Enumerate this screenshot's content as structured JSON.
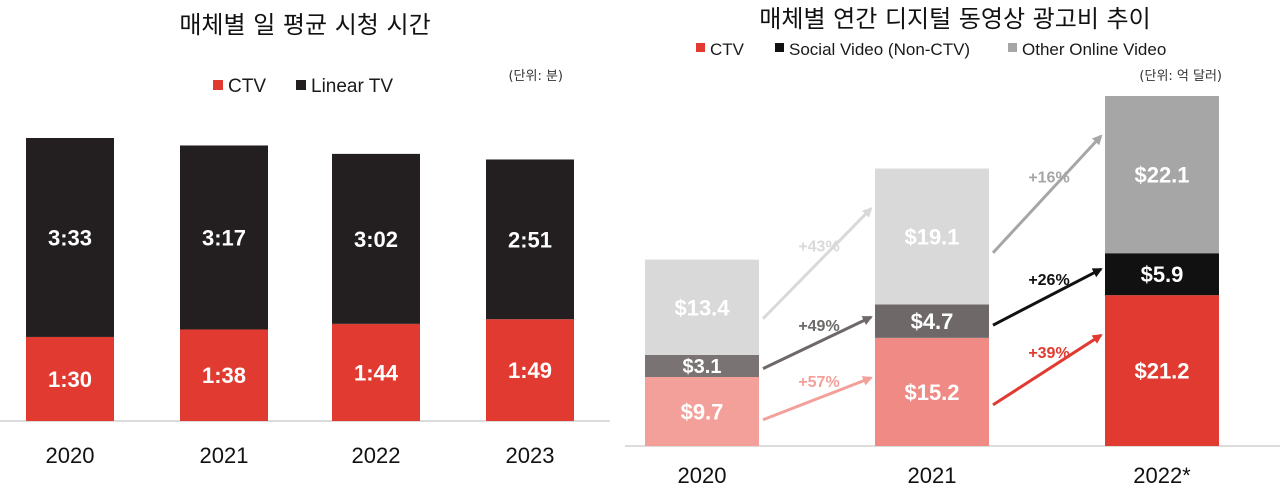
{
  "chart_data": [
    {
      "type": "bar",
      "stacked": true,
      "title": "매체별 일 평균 시청 시간",
      "unit_label": "(단위: 분)",
      "categories": [
        "2020",
        "2021",
        "2022",
        "2023"
      ],
      "series": [
        {
          "name": "CTV",
          "color": "#e03a31",
          "values": [
            90,
            98,
            104,
            109
          ],
          "labels": [
            "1:30",
            "1:38",
            "1:44",
            "1:49"
          ]
        },
        {
          "name": "Linear TV",
          "color": "#231f20",
          "values": [
            213,
            197,
            182,
            171
          ],
          "labels": [
            "3:33",
            "3:17",
            "3:02",
            "2:51"
          ]
        }
      ],
      "ylim": [
        0,
        303
      ],
      "legend": "top-center",
      "grid": false
    },
    {
      "type": "bar",
      "stacked": true,
      "title": "매체별 연간 디지털 동영상 광고비 추이",
      "unit_label": "(단위: 억 달러)",
      "categories": [
        "2020",
        "2021",
        "2022*"
      ],
      "series": [
        {
          "name": "CTV",
          "color": "#e03a31",
          "year_colors": [
            "#f4a09a",
            "#f08a84",
            "#e03a31"
          ],
          "values": [
            9.7,
            15.2,
            21.2
          ],
          "labels": [
            "$9.7",
            "$15.2",
            "$21.2"
          ]
        },
        {
          "name": "Social Video (Non-CTV)",
          "color": "#1a1a1a",
          "year_colors": [
            "#7a7373",
            "#6e6868",
            "#111111"
          ],
          "values": [
            3.1,
            4.7,
            5.9
          ],
          "labels": [
            "$3.1",
            "$4.7",
            "$5.9"
          ]
        },
        {
          "name": "Other Online Video",
          "color": "#a6a6a6",
          "year_colors": [
            "#d9d9d9",
            "#d9d9d9",
            "#a6a6a6"
          ],
          "values": [
            13.4,
            19.1,
            22.1
          ],
          "labels": [
            "$13.4",
            "$19.1",
            "$22.1"
          ]
        }
      ],
      "growth_arrows": [
        {
          "series": "Other Online Video",
          "from": "2020",
          "to": "2021",
          "label": "+43%",
          "color": "#d9d9d9"
        },
        {
          "series": "Social Video (Non-CTV)",
          "from": "2020",
          "to": "2021",
          "label": "+49%",
          "color": "#6e6868"
        },
        {
          "series": "CTV",
          "from": "2020",
          "to": "2021",
          "label": "+57%",
          "color": "#f4a09a"
        },
        {
          "series": "Other Online Video",
          "from": "2021",
          "to": "2022*",
          "label": "+16%",
          "color": "#a6a6a6"
        },
        {
          "series": "Social Video (Non-CTV)",
          "from": "2021",
          "to": "2022*",
          "label": "+26%",
          "color": "#111111"
        },
        {
          "series": "CTV",
          "from": "2021",
          "to": "2022*",
          "label": "+39%",
          "color": "#e03a31"
        }
      ],
      "ylim": [
        0,
        49.2
      ],
      "legend": "top-center",
      "grid": false
    }
  ]
}
